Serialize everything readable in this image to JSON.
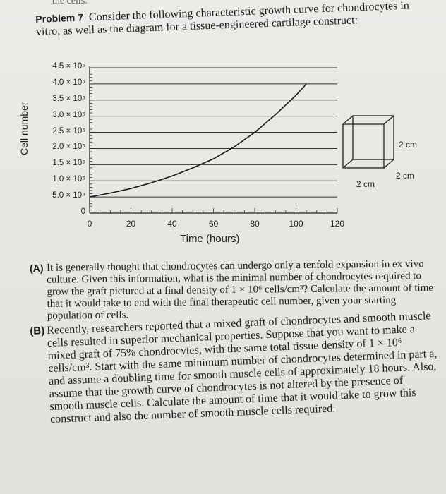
{
  "header_fragment": "the cells.",
  "problem": {
    "label": "Problem 7",
    "text": "Consider the following characteristic growth curve for chondrocytes in vitro, as well as the diagram for a tissue-engineered cartilage construct:"
  },
  "chart_data": {
    "type": "line",
    "xlabel": "Time (hours)",
    "ylabel": "Cell number",
    "x_ticks": [
      "0",
      "20",
      "40",
      "60",
      "80",
      "100",
      "120"
    ],
    "y_ticks": [
      "0",
      "5.0 × 10⁴",
      "1.0 × 10⁵",
      "1.5 × 10⁵",
      "2.0 × 10⁵",
      "2.5 × 10⁵",
      "3.0 × 10⁵",
      "3.5 × 10⁵",
      "4.0 × 10⁵",
      "4.5 × 10⁵"
    ],
    "xlim": [
      0,
      120
    ],
    "ylim": [
      0,
      450000
    ],
    "grid": "horizontal",
    "series": [
      {
        "x": [
          0,
          10,
          20,
          30,
          40,
          50,
          60,
          70,
          80,
          90,
          100,
          105
        ],
        "values": [
          50000,
          62000,
          76000,
          94000,
          115000,
          140000,
          168000,
          205000,
          250000,
          305000,
          365000,
          400000
        ]
      }
    ]
  },
  "construct_diagram": {
    "width_label": "2 cm",
    "height_label": "2 cm",
    "depth_label": "2 cm"
  },
  "questions": [
    {
      "letter": "(A)",
      "text": "It is generally thought that chondrocytes can undergo only a tenfold expansion in ex vivo culture. Given this information, what is the minimal number of chondrocytes required to grow the graft pictured at a final density of 1 × 10⁶ cells/cm³? Calculate the amount of time that it would take to end with the final therapeutic cell number, given your starting population of cells."
    },
    {
      "letter": "(B)",
      "text": "Recently, researchers reported that a mixed graft of chondrocytes and smooth muscle cells resulted in superior mechanical properties. Suppose that you want to make a mixed graft of 75% chondrocytes, with the same total tissue density of 1 × 10⁶ cells/cm³. Start with the same minimum number of chondrocytes determined in part a, and assume a doubling time for smooth muscle cells of approximately 18 hours. Also, assume that the growth curve of chondrocytes is not altered by the presence of smooth muscle cells. Calculate the amount of time that it would take to grow this construct and also the number of smooth muscle cells required."
    }
  ]
}
